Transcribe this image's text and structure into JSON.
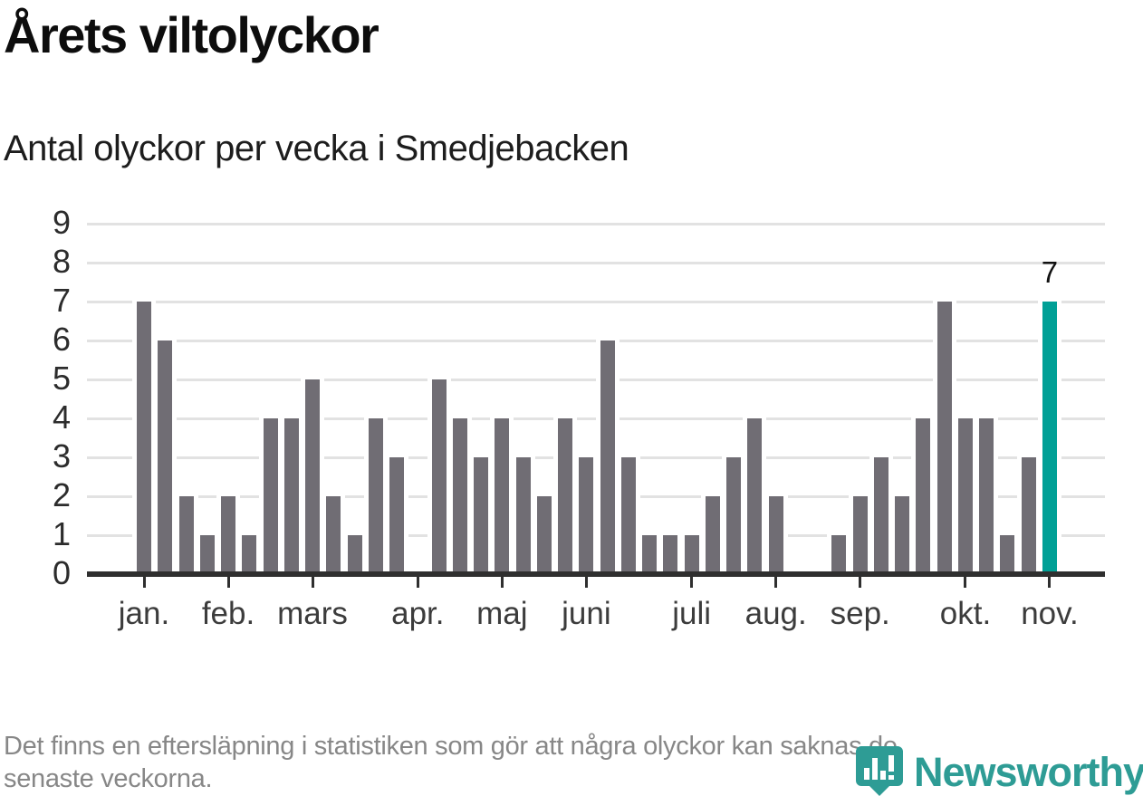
{
  "header": {
    "title": "Årets viltolyckor",
    "subtitle": "Antal olyckor per vecka i Smedjebacken"
  },
  "footnote": {
    "line1": "Det finns en eftersläpning i statistiken som gör att några olyckor kan saknas de",
    "line2": "senaste veckorna."
  },
  "branding": {
    "name": "Newsworthy",
    "icon": "newsworthy-pin-barchart-icon"
  },
  "colors": {
    "bar": "#706d74",
    "highlight": "#00a096",
    "gridline": "#e2e2e2",
    "axis": "#2f2f2f",
    "brand": "#2e9c95",
    "xlabel": "#3c3c3c",
    "footnote": "#878787"
  },
  "chart_data": {
    "type": "bar",
    "title": "Årets viltolyckor",
    "subtitle": "Antal olyckor per vecka i Smedjebacken",
    "x_unit": "week",
    "ylim": [
      0,
      9
    ],
    "yticks": [
      0,
      1,
      2,
      3,
      4,
      5,
      6,
      7,
      8,
      9
    ],
    "grid": "horizontal",
    "legend": "none",
    "values": [
      7,
      6,
      2,
      1,
      2,
      1,
      4,
      4,
      5,
      2,
      1,
      4,
      3,
      0,
      5,
      4,
      3,
      4,
      3,
      2,
      4,
      3,
      6,
      3,
      1,
      1,
      1,
      2,
      3,
      4,
      2,
      0,
      0,
      1,
      2,
      3,
      2,
      4,
      7,
      4,
      4,
      1,
      3,
      7
    ],
    "months": [
      {
        "label": "jan.",
        "week_index": 0
      },
      {
        "label": "feb.",
        "week_index": 4
      },
      {
        "label": "mars",
        "week_index": 8
      },
      {
        "label": "apr.",
        "week_index": 13
      },
      {
        "label": "maj",
        "week_index": 17
      },
      {
        "label": "juni",
        "week_index": 21
      },
      {
        "label": "juli",
        "week_index": 26
      },
      {
        "label": "aug.",
        "week_index": 30
      },
      {
        "label": "sep.",
        "week_index": 34
      },
      {
        "label": "okt.",
        "week_index": 39
      },
      {
        "label": "nov.",
        "week_index": 43
      }
    ],
    "highlight_index": 43,
    "highlight_value_label": "7"
  }
}
